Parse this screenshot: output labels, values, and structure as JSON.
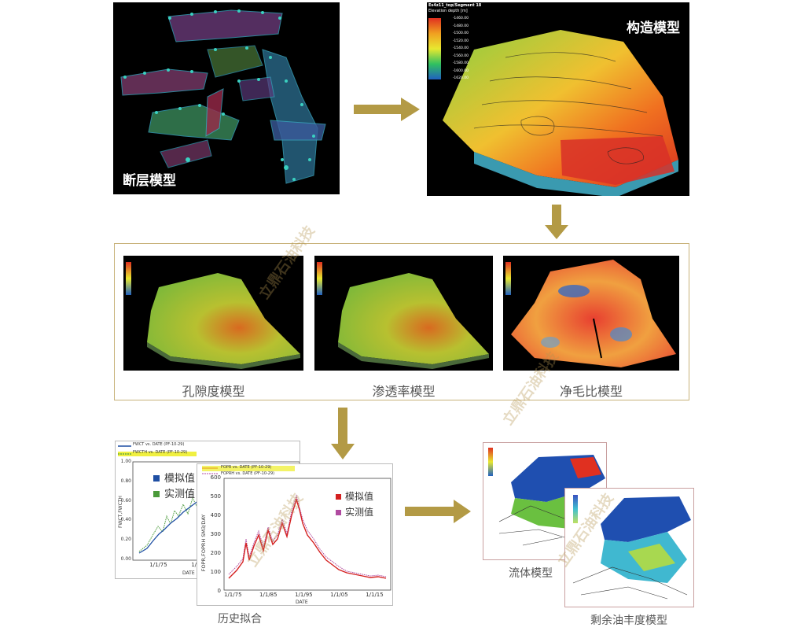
{
  "fault_model": {
    "label": "断层模型"
  },
  "structure_model": {
    "label": "构造模型",
    "legend_title": "Es4z11_top/Segment 18",
    "legend_subtitle": "Elevation depth [m]",
    "legend_ticks": [
      "-1460.00",
      "-1480.00",
      "-1500.00",
      "-1520.00",
      "-1540.00",
      "-1560.00",
      "-1580.00",
      "-1600.00",
      "-1620.00"
    ]
  },
  "property_models": {
    "items": [
      {
        "label": "孔隙度模型"
      },
      {
        "label": "渗透率模型"
      },
      {
        "label": "净毛比模型"
      }
    ]
  },
  "history_match": {
    "label": "历史拟合",
    "chart_water": {
      "legend": [
        "FWCT vs. DATE (PF-10-29)",
        "FWCTH vs. DATE (PF-10-29)"
      ],
      "y_label": "FWCT,FWCTH",
      "y_ticks": [
        "1.00",
        "0.80",
        "0.60",
        "0.40",
        "0.20",
        "0.00"
      ],
      "x_ticks": [
        "1/1/75",
        "1/1/85"
      ],
      "x_label": "DATE",
      "key_sim": "模拟值",
      "key_obs": "实测值"
    },
    "chart_oil": {
      "legend": [
        "FOPR vs. DATE (PF-10-29)",
        "FOPRH vs. DATE (PF-10-29)"
      ],
      "y_label": "FOPR,FOPRH SM3/DAY",
      "y_ticks": [
        "600",
        "500",
        "400",
        "300",
        "200",
        "100",
        "0"
      ],
      "x_ticks": [
        "1/1/75",
        "1/1/85",
        "1/1/95",
        "1/1/05",
        "1/1/15"
      ],
      "x_label": "DATE",
      "key_sim": "模拟值",
      "key_obs": "实测值"
    },
    "colors": {
      "sim_blue": "#1f4fa3",
      "obs_green": "#4a9a3a",
      "sim_red": "#d42020",
      "obs_purple": "#b04aa0"
    }
  },
  "fluid_model": {
    "label": "流体模型"
  },
  "remaining_oil_model": {
    "label": "剩余油丰度模型"
  },
  "watermark": "立鼎石油科技",
  "colors": {
    "arrow": "#b39a45",
    "frame": "#c8b27a"
  }
}
